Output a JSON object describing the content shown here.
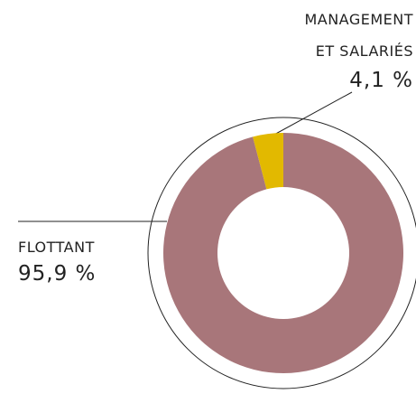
{
  "chart_data": {
    "type": "donut",
    "categories": [
      "FLOTTANT",
      "MANAGEMENT ET SALARIÉS"
    ],
    "values": [
      95.9,
      4.1
    ],
    "value_labels": [
      "95,9 %",
      "4,1 %"
    ],
    "colors": [
      "#a8767a",
      "#e2b900"
    ]
  }
}
